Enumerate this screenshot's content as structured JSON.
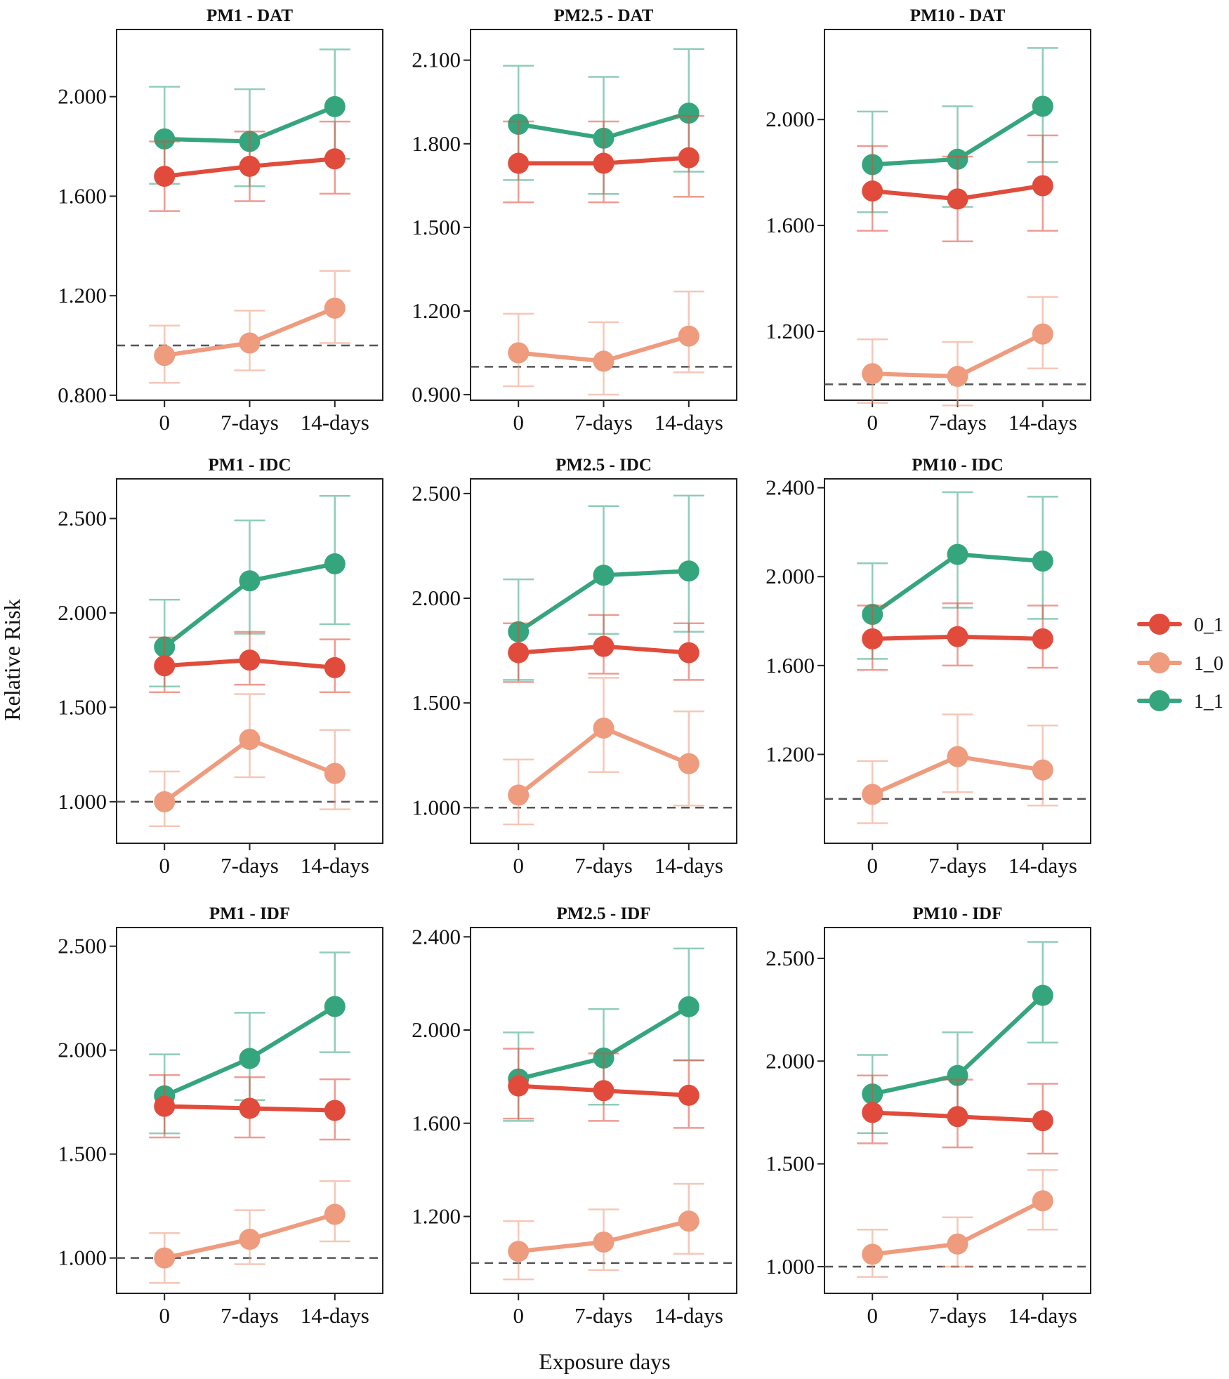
{
  "figure": {
    "ylabel": "Relative Risk",
    "xlabel": "Exposure days",
    "reference_line": 1.0
  },
  "legend": {
    "title": "",
    "entries": [
      {
        "key": "0_1",
        "label": "0_1",
        "color": "#E14B3B"
      },
      {
        "key": "1_0",
        "label": "1_0",
        "color": "#EE9B7E"
      },
      {
        "key": "1_1",
        "label": "1_1",
        "color": "#35A57D"
      }
    ]
  },
  "chart_data": [
    {
      "type": "line",
      "title": "PM1 - DAT",
      "categories": [
        "0",
        "7-days",
        "14-days"
      ],
      "xlabel": "Exposure days",
      "ylabel": "Relative Risk",
      "ylim": [
        0.78,
        2.27
      ],
      "yticks": [
        0.8,
        1.2,
        1.6,
        2.0
      ],
      "ytick_labels": [
        "0.800",
        "1.200",
        "1.600",
        "2.000"
      ],
      "series": [
        {
          "name": "0_1",
          "values": [
            1.68,
            1.72,
            1.75
          ],
          "lower": [
            1.54,
            1.58,
            1.61
          ],
          "upper": [
            1.82,
            1.86,
            1.9
          ]
        },
        {
          "name": "1_0",
          "values": [
            0.96,
            1.01,
            1.15
          ],
          "lower": [
            0.85,
            0.9,
            1.01
          ],
          "upper": [
            1.08,
            1.14,
            1.3
          ]
        },
        {
          "name": "1_1",
          "values": [
            1.83,
            1.82,
            1.96
          ],
          "lower": [
            1.65,
            1.64,
            1.75
          ],
          "upper": [
            2.04,
            2.03,
            2.19
          ]
        }
      ]
    },
    {
      "type": "line",
      "title": "PM2.5 - DAT",
      "categories": [
        "0",
        "7-days",
        "14-days"
      ],
      "xlabel": "Exposure days",
      "ylabel": "Relative Risk",
      "ylim": [
        0.88,
        2.21
      ],
      "yticks": [
        0.9,
        1.2,
        1.5,
        1.8,
        2.1
      ],
      "ytick_labels": [
        "0.900",
        "1.200",
        "1.500",
        "1.800",
        "2.100"
      ],
      "series": [
        {
          "name": "0_1",
          "values": [
            1.73,
            1.73,
            1.75
          ],
          "lower": [
            1.59,
            1.59,
            1.61
          ],
          "upper": [
            1.88,
            1.88,
            1.9
          ]
        },
        {
          "name": "1_0",
          "values": [
            1.05,
            1.02,
            1.11
          ],
          "lower": [
            0.93,
            0.9,
            0.98
          ],
          "upper": [
            1.19,
            1.16,
            1.27
          ]
        },
        {
          "name": "1_1",
          "values": [
            1.87,
            1.82,
            1.91
          ],
          "lower": [
            1.67,
            1.62,
            1.7
          ],
          "upper": [
            2.08,
            2.04,
            2.14
          ]
        }
      ]
    },
    {
      "type": "line",
      "title": "PM10 - DAT",
      "categories": [
        "0",
        "7-days",
        "14-days"
      ],
      "xlabel": "Exposure days",
      "ylabel": "Relative Risk",
      "ylim": [
        0.94,
        2.34
      ],
      "yticks": [
        1.2,
        1.6,
        2.0
      ],
      "ytick_labels": [
        "1.200",
        "1.600",
        "2.000"
      ],
      "series": [
        {
          "name": "0_1",
          "values": [
            1.73,
            1.7,
            1.75
          ],
          "lower": [
            1.58,
            1.54,
            1.58
          ],
          "upper": [
            1.9,
            1.86,
            1.94
          ]
        },
        {
          "name": "1_0",
          "values": [
            1.04,
            1.03,
            1.19
          ],
          "lower": [
            0.93,
            0.92,
            1.06
          ],
          "upper": [
            1.17,
            1.16,
            1.33
          ]
        },
        {
          "name": "1_1",
          "values": [
            1.83,
            1.85,
            2.05
          ],
          "lower": [
            1.65,
            1.67,
            1.84
          ],
          "upper": [
            2.03,
            2.05,
            2.27
          ]
        }
      ]
    },
    {
      "type": "line",
      "title": "PM1 - IDC",
      "categories": [
        "0",
        "7-days",
        "14-days"
      ],
      "xlabel": "Exposure days",
      "ylabel": "Relative Risk",
      "ylim": [
        0.78,
        2.71
      ],
      "yticks": [
        1.0,
        1.5,
        2.0,
        2.5
      ],
      "ytick_labels": [
        "1.000",
        "1.500",
        "2.000",
        "2.500"
      ],
      "series": [
        {
          "name": "0_1",
          "values": [
            1.72,
            1.75,
            1.71
          ],
          "lower": [
            1.58,
            1.62,
            1.58
          ],
          "upper": [
            1.87,
            1.9,
            1.86
          ]
        },
        {
          "name": "1_0",
          "values": [
            1.0,
            1.33,
            1.15
          ],
          "lower": [
            0.87,
            1.13,
            0.96
          ],
          "upper": [
            1.16,
            1.57,
            1.38
          ]
        },
        {
          "name": "1_1",
          "values": [
            1.82,
            2.17,
            2.26
          ],
          "lower": [
            1.61,
            1.89,
            1.94
          ],
          "upper": [
            2.07,
            2.49,
            2.62
          ]
        }
      ]
    },
    {
      "type": "line",
      "title": "PM2.5 - IDC",
      "categories": [
        "0",
        "7-days",
        "14-days"
      ],
      "xlabel": "Exposure days",
      "ylabel": "Relative Risk",
      "ylim": [
        0.83,
        2.57
      ],
      "yticks": [
        1.0,
        1.5,
        2.0,
        2.5
      ],
      "ytick_labels": [
        "1.000",
        "1.500",
        "2.000",
        "2.500"
      ],
      "series": [
        {
          "name": "0_1",
          "values": [
            1.74,
            1.77,
            1.74
          ],
          "lower": [
            1.6,
            1.64,
            1.61
          ],
          "upper": [
            1.88,
            1.92,
            1.88
          ]
        },
        {
          "name": "1_0",
          "values": [
            1.06,
            1.38,
            1.21
          ],
          "lower": [
            0.92,
            1.17,
            1.01
          ],
          "upper": [
            1.23,
            1.62,
            1.46
          ]
        },
        {
          "name": "1_1",
          "values": [
            1.84,
            2.11,
            2.13
          ],
          "lower": [
            1.61,
            1.83,
            1.84
          ],
          "upper": [
            2.09,
            2.44,
            2.49
          ]
        }
      ]
    },
    {
      "type": "line",
      "title": "PM10 - IDC",
      "categories": [
        "0",
        "7-days",
        "14-days"
      ],
      "xlabel": "Exposure days",
      "ylabel": "Relative Risk",
      "ylim": [
        0.8,
        2.44
      ],
      "yticks": [
        1.2,
        1.6,
        2.0,
        2.4
      ],
      "ytick_labels": [
        "1.200",
        "1.600",
        "2.000",
        "2.400"
      ],
      "series": [
        {
          "name": "0_1",
          "values": [
            1.72,
            1.73,
            1.72
          ],
          "lower": [
            1.58,
            1.6,
            1.59
          ],
          "upper": [
            1.87,
            1.88,
            1.87
          ]
        },
        {
          "name": "1_0",
          "values": [
            1.02,
            1.19,
            1.13
          ],
          "lower": [
            0.89,
            1.03,
            0.97
          ],
          "upper": [
            1.17,
            1.38,
            1.33
          ]
        },
        {
          "name": "1_1",
          "values": [
            1.83,
            2.1,
            2.07
          ],
          "lower": [
            1.63,
            1.86,
            1.81
          ],
          "upper": [
            2.06,
            2.38,
            2.36
          ]
        }
      ]
    },
    {
      "type": "line",
      "title": "PM1 - IDF",
      "categories": [
        "0",
        "7-days",
        "14-days"
      ],
      "xlabel": "Exposure days",
      "ylabel": "Relative Risk",
      "ylim": [
        0.83,
        2.59
      ],
      "yticks": [
        1.0,
        1.5,
        2.0,
        2.5
      ],
      "ytick_labels": [
        "1.000",
        "1.500",
        "2.000",
        "2.500"
      ],
      "series": [
        {
          "name": "0_1",
          "values": [
            1.73,
            1.72,
            1.71
          ],
          "lower": [
            1.58,
            1.58,
            1.57
          ],
          "upper": [
            1.88,
            1.87,
            1.86
          ]
        },
        {
          "name": "1_0",
          "values": [
            1.0,
            1.09,
            1.21
          ],
          "lower": [
            0.88,
            0.97,
            1.08
          ],
          "upper": [
            1.12,
            1.23,
            1.37
          ]
        },
        {
          "name": "1_1",
          "values": [
            1.78,
            1.96,
            2.21
          ],
          "lower": [
            1.6,
            1.76,
            1.99
          ],
          "upper": [
            1.98,
            2.18,
            2.47
          ]
        }
      ]
    },
    {
      "type": "line",
      "title": "PM2.5 - IDF",
      "categories": [
        "0",
        "7-days",
        "14-days"
      ],
      "xlabel": "Exposure days",
      "ylabel": "Relative Risk",
      "ylim": [
        0.87,
        2.44
      ],
      "yticks": [
        1.2,
        1.6,
        2.0,
        2.4
      ],
      "ytick_labels": [
        "1.200",
        "1.600",
        "2.000",
        "2.400"
      ],
      "series": [
        {
          "name": "0_1",
          "values": [
            1.76,
            1.74,
            1.72
          ],
          "lower": [
            1.62,
            1.61,
            1.58
          ],
          "upper": [
            1.92,
            1.9,
            1.87
          ]
        },
        {
          "name": "1_0",
          "values": [
            1.05,
            1.09,
            1.18
          ],
          "lower": [
            0.93,
            0.97,
            1.04
          ],
          "upper": [
            1.18,
            1.23,
            1.34
          ]
        },
        {
          "name": "1_1",
          "values": [
            1.79,
            1.88,
            2.1
          ],
          "lower": [
            1.61,
            1.68,
            1.87
          ],
          "upper": [
            1.99,
            2.09,
            2.35
          ]
        }
      ]
    },
    {
      "type": "line",
      "title": "PM10 - IDF",
      "categories": [
        "0",
        "7-days",
        "14-days"
      ],
      "xlabel": "Exposure days",
      "ylabel": "Relative Risk",
      "ylim": [
        0.87,
        2.65
      ],
      "yticks": [
        1.0,
        1.5,
        2.0,
        2.5
      ],
      "ytick_labels": [
        "1.000",
        "1.500",
        "2.000",
        "2.500"
      ],
      "series": [
        {
          "name": "0_1",
          "values": [
            1.75,
            1.73,
            1.71
          ],
          "lower": [
            1.6,
            1.58,
            1.55
          ],
          "upper": [
            1.93,
            1.91,
            1.89
          ]
        },
        {
          "name": "1_0",
          "values": [
            1.06,
            1.11,
            1.32
          ],
          "lower": [
            0.95,
            1.0,
            1.18
          ],
          "upper": [
            1.18,
            1.24,
            1.47
          ]
        },
        {
          "name": "1_1",
          "values": [
            1.84,
            1.93,
            2.32
          ],
          "lower": [
            1.65,
            1.73,
            2.09
          ],
          "upper": [
            2.03,
            2.14,
            2.58
          ]
        }
      ]
    }
  ]
}
